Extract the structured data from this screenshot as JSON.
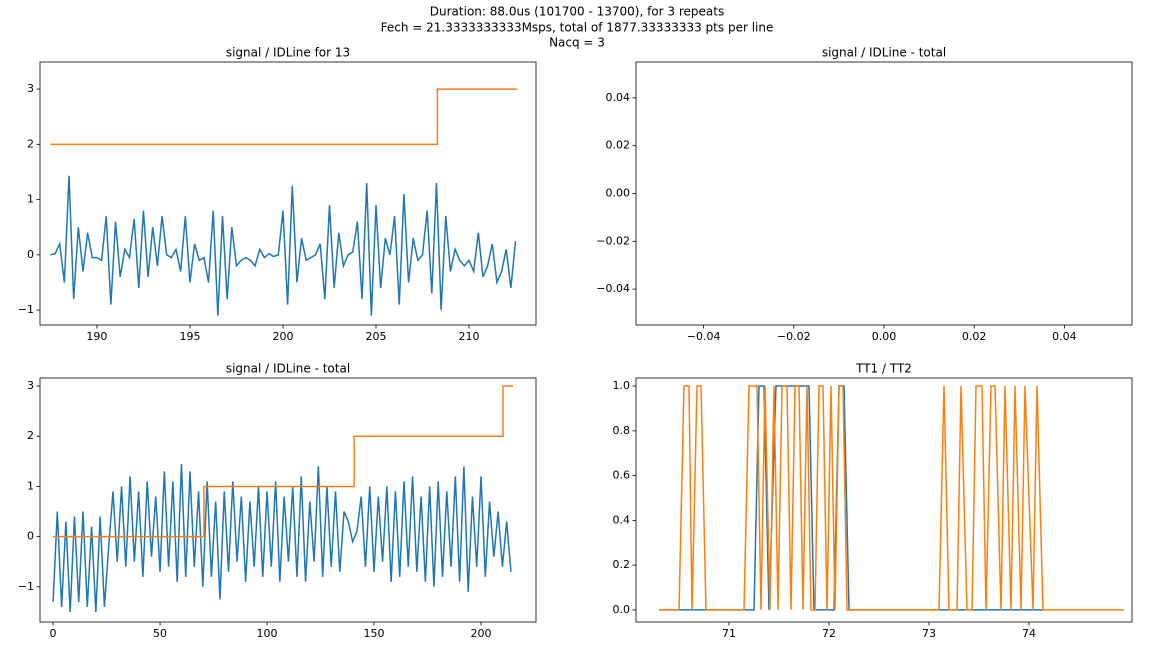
{
  "suptitle": [
    "Duration: 88.0us (101700 - 13700), for 3 repeats",
    "Fech = 21.3333333333Msps, total of 1877.33333333 pts per line",
    "Nacq = 3"
  ],
  "chart_data": [
    {
      "type": "line",
      "title": "signal / IDLine for 13",
      "xlim": [
        186.94,
        213.6
      ],
      "xticks": [
        190,
        195,
        200,
        205,
        210
      ],
      "ylim": [
        -1.27,
        3.49
      ],
      "yticks": [
        {
          "value": -1,
          "label": "−1"
        },
        0,
        1,
        2,
        3
      ],
      "series": [
        {
          "color": "#1f77b4",
          "x": [
            187.5,
            187.75,
            188,
            188.25,
            188.5,
            188.75,
            189,
            189.25,
            189.5,
            189.75,
            190,
            190.25,
            190.5,
            190.75,
            191,
            191.25,
            191.5,
            191.75,
            192,
            192.25,
            192.5,
            192.75,
            193,
            193.25,
            193.5,
            193.75,
            194,
            194.25,
            194.5,
            194.75,
            195,
            195.25,
            195.5,
            195.75,
            196,
            196.25,
            196.5,
            196.75,
            197,
            197.25,
            197.5,
            197.75,
            198,
            198.25,
            198.5,
            198.75,
            199,
            199.25,
            199.5,
            199.75,
            200,
            200.25,
            200.5,
            200.75,
            201,
            201.25,
            201.5,
            201.75,
            202,
            202.25,
            202.5,
            202.75,
            203,
            203.25,
            203.5,
            203.75,
            204,
            204.25,
            204.5,
            204.75,
            205,
            205.25,
            205.5,
            205.75,
            206,
            206.25,
            206.5,
            206.75,
            207,
            207.25,
            207.5,
            207.75,
            208,
            208.25,
            208.5,
            208.75,
            209,
            209.25,
            209.5,
            209.75,
            210,
            210.25,
            210.5,
            210.75,
            211,
            211.25,
            211.5,
            211.75,
            212,
            212.25,
            212.5
          ],
          "values": [
            0.0,
            0.02,
            0.2,
            -0.5,
            1.43,
            -0.8,
            0.5,
            -0.3,
            0.4,
            -0.05,
            -0.05,
            -0.1,
            0.7,
            -0.9,
            0.6,
            -0.4,
            0.1,
            -0.05,
            0.65,
            -0.6,
            0.8,
            -0.4,
            0.5,
            -0.2,
            0.7,
            0.0,
            -0.05,
            0.1,
            -0.3,
            0.7,
            -0.5,
            0.2,
            -0.1,
            -0.05,
            -0.5,
            0.8,
            -1.1,
            0.7,
            -0.8,
            0.5,
            -0.2,
            -0.1,
            -0.05,
            -0.1,
            -0.2,
            0.1,
            -0.05,
            0.02,
            -0.03,
            0.0,
            0.8,
            -0.9,
            1.25,
            -0.5,
            0.3,
            -0.1,
            -0.05,
            0.0,
            0.2,
            -0.8,
            0.9,
            -0.6,
            0.4,
            -0.2,
            0.0,
            0.05,
            0.6,
            -0.8,
            1.3,
            -1.1,
            0.9,
            -0.6,
            0.3,
            0.0,
            0.7,
            -0.9,
            1.1,
            -0.5,
            0.3,
            -0.1,
            0.0,
            0.8,
            -0.7,
            1.3,
            -1.0,
            0.7,
            -0.3,
            0.1,
            -0.1,
            -0.2,
            -0.1,
            -0.3,
            0.4,
            -0.4,
            -0.2,
            0.2,
            -0.5,
            -0.3,
            0.1,
            -0.6,
            0.25
          ]
        },
        {
          "color": "#ff7f0e",
          "x": [
            187.5,
            208.3,
            208.3,
            212.6
          ],
          "values": [
            2,
            2,
            3,
            3
          ]
        }
      ]
    },
    {
      "type": "line",
      "title": "signal / IDLine - total",
      "xlim": [
        -0.055,
        0.055
      ],
      "xticks": [
        {
          "value": -0.04,
          "label": "−0.04"
        },
        {
          "value": -0.02,
          "label": "−0.02"
        },
        {
          "value": 0,
          "label": "0.00"
        },
        {
          "value": 0.02,
          "label": "0.02"
        },
        {
          "value": 0.04,
          "label": "0.04"
        }
      ],
      "ylim": [
        -0.055,
        0.055
      ],
      "yticks": [
        {
          "value": -0.04,
          "label": "−0.04"
        },
        {
          "value": -0.02,
          "label": "−0.02"
        },
        {
          "value": 0,
          "label": "0.00"
        },
        {
          "value": 0.02,
          "label": "0.02"
        },
        {
          "value": 0.04,
          "label": "0.04"
        }
      ],
      "series": []
    },
    {
      "type": "line",
      "title": "signal / IDLine - total",
      "xlim": [
        -6.1,
        225.7
      ],
      "xticks": [
        0,
        50,
        100,
        150,
        200
      ],
      "ylim": [
        -1.7,
        3.16
      ],
      "yticks": [
        {
          "value": -1,
          "label": "−1"
        },
        0,
        1,
        2,
        3
      ],
      "series": [
        {
          "color": "#1f77b4",
          "x": [
            0,
            2,
            4,
            6,
            8,
            10,
            12,
            14,
            16,
            18,
            20,
            22,
            24,
            26,
            28,
            30,
            32,
            34,
            36,
            38,
            40,
            42,
            44,
            46,
            48,
            50,
            52,
            54,
            56,
            58,
            60,
            62,
            64,
            66,
            68,
            70,
            72,
            74,
            76,
            78,
            80,
            82,
            84,
            86,
            88,
            90,
            92,
            94,
            96,
            98,
            100,
            102,
            104,
            106,
            108,
            110,
            112,
            114,
            116,
            118,
            120,
            122,
            124,
            126,
            128,
            130,
            132,
            134,
            136,
            138,
            140,
            142,
            144,
            146,
            148,
            150,
            152,
            154,
            156,
            158,
            160,
            162,
            164,
            166,
            168,
            170,
            172,
            174,
            176,
            178,
            180,
            182,
            184,
            186,
            188,
            190,
            192,
            194,
            196,
            198,
            200,
            202,
            204,
            206,
            208,
            210,
            212,
            214
          ],
          "values": [
            -1.3,
            0.5,
            -1.4,
            0.3,
            -1.5,
            0.4,
            -1.3,
            0.5,
            -1.4,
            0.2,
            -1.5,
            0.4,
            -1.4,
            -0.2,
            0.9,
            -0.5,
            1.0,
            -0.6,
            1.2,
            -0.5,
            0.9,
            -0.8,
            1.1,
            -0.4,
            0.8,
            -0.7,
            1.3,
            -0.6,
            1.1,
            -0.9,
            1.45,
            -0.8,
            1.3,
            -0.6,
            0.9,
            -1.0,
            1.1,
            -0.8,
            0.7,
            -1.25,
            0.9,
            -0.7,
            1.1,
            -0.5,
            0.8,
            -0.9,
            0.7,
            -0.6,
            1.0,
            -0.8,
            0.9,
            -0.6,
            1.1,
            -0.9,
            0.8,
            -0.5,
            1.0,
            -0.8,
            1.2,
            -0.9,
            0.7,
            -0.5,
            1.4,
            -0.8,
            1.0,
            -0.6,
            0.9,
            -0.7,
            0.5,
            0.3,
            -0.1,
            0.1,
            0.8,
            -0.6,
            1.0,
            -0.7,
            0.8,
            -0.5,
            1.0,
            -0.9,
            0.9,
            -0.8,
            1.1,
            -0.6,
            1.2,
            -0.7,
            0.8,
            -0.9,
            1.0,
            -1.0,
            1.1,
            -0.8,
            0.9,
            -0.6,
            1.2,
            -0.9,
            1.4,
            -1.1,
            0.8,
            -0.6,
            1.2,
            -0.8,
            0.7,
            -0.4,
            0.5,
            -0.6,
            0.3,
            -0.7
          ]
        },
        {
          "color": "#ff7f0e",
          "x": [
            0,
            70.5,
            70.5,
            140.7,
            140.7,
            210.3,
            210.3,
            215
          ],
          "values": [
            0,
            0,
            1,
            1,
            2,
            2,
            3,
            3
          ]
        }
      ]
    },
    {
      "type": "line",
      "title": "TT1 / TT2",
      "xlim": [
        70.07,
        75.03
      ],
      "xticks": [
        71,
        72,
        73,
        74
      ],
      "ylim": [
        -0.054,
        1.036
      ],
      "yticks": [
        {
          "value": 0,
          "label": "0.0"
        },
        {
          "value": 0.2,
          "label": "0.2"
        },
        {
          "value": 0.4,
          "label": "0.4"
        },
        {
          "value": 0.6,
          "label": "0.6"
        },
        {
          "value": 0.8,
          "label": "0.8"
        },
        {
          "value": 1,
          "label": "1.0"
        }
      ],
      "series": [
        {
          "color": "#1f77b4",
          "x": [
            70.3,
            71.25,
            71.3,
            71.35,
            71.4,
            71.47,
            71.52,
            71.8,
            71.85,
            72.05,
            72.1,
            72.15,
            72.2,
            74.15
          ],
          "values": [
            0,
            0,
            1,
            1,
            0,
            1,
            1,
            1,
            0,
            0,
            1,
            1,
            0,
            0
          ]
        },
        {
          "color": "#ff7f0e",
          "x": [
            70.3,
            70.5,
            70.55,
            70.6,
            70.63,
            70.68,
            70.72,
            70.77,
            71.15,
            71.2,
            71.28,
            71.32,
            71.36,
            71.41,
            71.45,
            71.49,
            71.53,
            71.58,
            71.62,
            71.66,
            71.7,
            71.74,
            71.78,
            71.82,
            71.86,
            71.9,
            71.94,
            71.98,
            72.02,
            72.06,
            72.1,
            72.14,
            72.18,
            73.1,
            73.15,
            73.2,
            73.28,
            73.32,
            73.38,
            73.43,
            73.47,
            73.53,
            73.57,
            73.62,
            73.66,
            73.72,
            73.76,
            73.82,
            73.86,
            73.92,
            73.96,
            74.04,
            74.08,
            74.14,
            74.95
          ],
          "values": [
            0,
            0,
            1,
            1,
            0,
            1,
            1,
            0,
            0,
            1,
            1,
            0,
            1,
            0,
            1,
            0,
            1,
            1,
            0,
            1,
            1,
            0,
            1,
            0,
            0,
            1,
            1,
            0,
            1,
            0,
            1,
            1,
            0,
            0,
            1,
            0,
            0,
            1,
            0,
            0,
            1,
            1,
            0,
            1,
            1,
            0,
            1,
            0,
            1,
            0,
            1,
            0,
            1,
            0,
            0
          ]
        }
      ]
    }
  ]
}
